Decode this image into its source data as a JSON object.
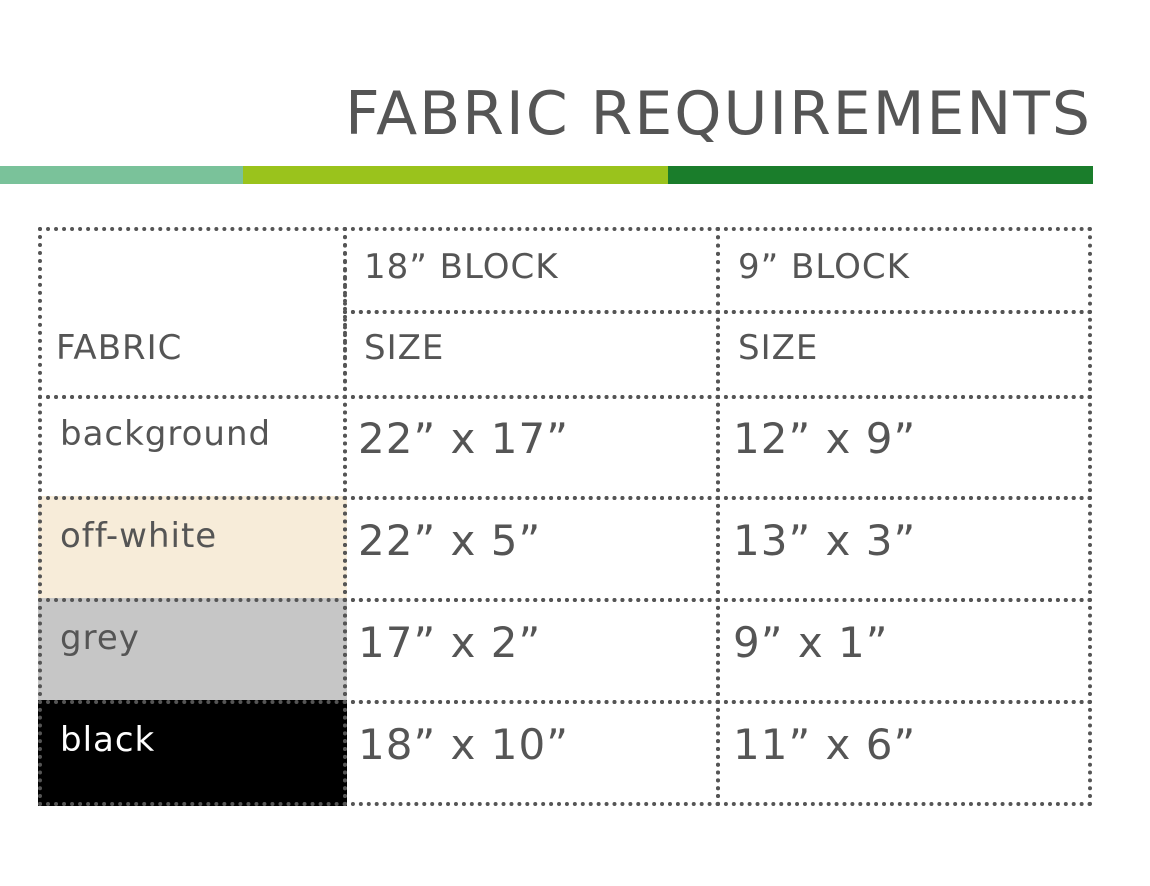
{
  "title": "FABRIC REQUIREMENTS",
  "colors": {
    "bar1": "#7ac29a",
    "bar2": "#9ac31c",
    "bar3": "#1a7d2b",
    "text": "#555555",
    "offwhite": "#f7ecd9",
    "grey": "#c6c6c6",
    "black": "#000000"
  },
  "table": {
    "header": {
      "fabric": "FABRIC",
      "col1_top": "18” BLOCK",
      "col1_bottom": "SIZE",
      "col2_top": "9” BLOCK",
      "col2_bottom": "SIZE"
    },
    "rows": [
      {
        "fabric": "background",
        "block18": "22” x 17”",
        "block9": "12” x 9”"
      },
      {
        "fabric": "off-white",
        "block18": "22” x 5”",
        "block9": "13” x 3”"
      },
      {
        "fabric": "grey",
        "block18": "17” x 2”",
        "block9": "9” x 1”"
      },
      {
        "fabric": "black",
        "block18": "18” x 10”",
        "block9": "11” x 6”"
      }
    ]
  }
}
